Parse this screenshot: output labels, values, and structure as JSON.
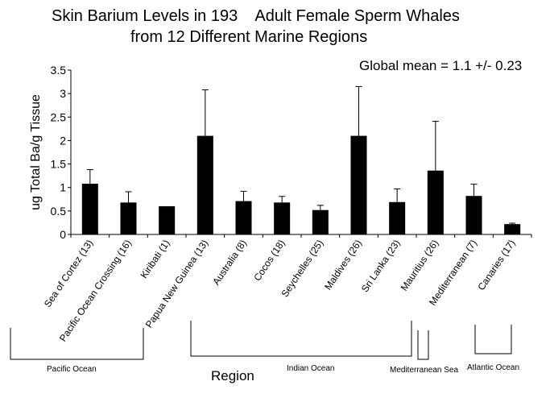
{
  "chart_data": {
    "type": "bar",
    "title_line1": "Skin Barium Levels in 193    Adult Female Sperm Whales",
    "title_line2": "from 12 Different Marine Regions",
    "annotation": "Global mean = 1.1 +/- 0.23",
    "xlabel": "Region",
    "ylabel": "ug Total Ba/g Tissue",
    "ylim": [
      0,
      3.5
    ],
    "yticks": [
      "0",
      "0.5",
      "1",
      "1.5",
      "2",
      "2.5",
      "3",
      "3.5"
    ],
    "grid": false,
    "bar_color": "#000000",
    "categories": [
      "Sea of Cortez (13)",
      "Pacific Ocean Crossing (16)",
      "Kiribati (1)",
      "Papua New Guinea (13)",
      "Australia (8)",
      "Cocos (18)",
      "Seychelles (25)",
      "Maldives (26)",
      "Sri Lanka (23)",
      "Mauritius (26)",
      "Mediterranean (7)",
      "Canaries (17)"
    ],
    "values": [
      1.08,
      0.68,
      0.6,
      2.1,
      0.71,
      0.68,
      0.52,
      2.1,
      0.69,
      1.36,
      0.82,
      0.22
    ],
    "error_upper": [
      0.3,
      0.23,
      0,
      0.98,
      0.21,
      0.13,
      0.1,
      1.05,
      0.28,
      1.05,
      0.25,
      0.02
    ],
    "regions": [
      {
        "label": "Pacific Ocean",
        "from": 0,
        "to": 2
      },
      {
        "label": "Indian Ocean",
        "from": 3,
        "to": 9
      },
      {
        "label": "Mediterranean Sea",
        "from": 10,
        "to": 10
      },
      {
        "label": "Atlantic Ocean",
        "from": 11,
        "to": 11
      }
    ]
  }
}
